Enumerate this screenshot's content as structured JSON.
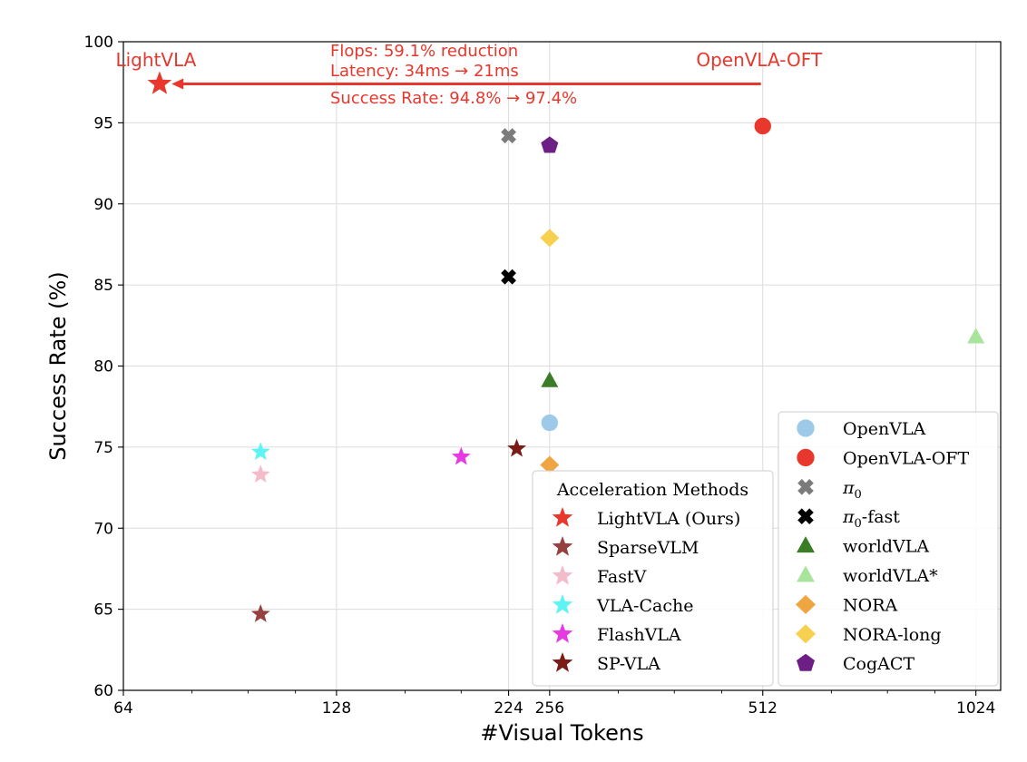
{
  "chart_data": {
    "type": "scatter",
    "xlabel": "#Visual Tokens",
    "ylabel": "Success Rate (%)",
    "xscale": "log2",
    "xlim": [
      64,
      1110
    ],
    "ylim": [
      60,
      100
    ],
    "xticks": [
      64,
      128,
      224,
      256,
      512,
      1024
    ],
    "yticks": [
      60,
      65,
      70,
      75,
      80,
      85,
      90,
      95,
      100
    ],
    "grid": true,
    "series": [
      {
        "name": "LightVLA (Ours)",
        "group": "acceleration",
        "marker": "star",
        "color": "#e8372c",
        "x": 72,
        "y": 97.4,
        "size": "large"
      },
      {
        "name": "SparseVLM",
        "group": "acceleration",
        "marker": "star",
        "color": "#96403f",
        "x": 100,
        "y": 64.7
      },
      {
        "name": "FastV",
        "group": "acceleration",
        "marker": "star",
        "color": "#f4bccb",
        "x": 100,
        "y": 73.3
      },
      {
        "name": "VLA-Cache",
        "group": "acceleration",
        "marker": "star",
        "color": "#5ff4f4",
        "x": 100,
        "y": 74.7
      },
      {
        "name": "FlashVLA",
        "group": "acceleration",
        "marker": "star",
        "color": "#e63ae3",
        "x": 192,
        "y": 74.4
      },
      {
        "name": "SP-VLA",
        "group": "acceleration",
        "marker": "star",
        "color": "#7a1b18",
        "x": 230,
        "y": 74.9
      },
      {
        "name": "OpenVLA",
        "group": "baseline",
        "marker": "circle",
        "color": "#9dcae9",
        "x": 256,
        "y": 76.5
      },
      {
        "name": "OpenVLA-OFT",
        "group": "baseline",
        "marker": "circle",
        "color": "#e8372c",
        "x": 512,
        "y": 94.8
      },
      {
        "name": "π0",
        "group": "baseline",
        "marker": "x",
        "color": "#7b7b7b",
        "x": 224,
        "y": 94.2
      },
      {
        "name": "π0-fast",
        "group": "baseline",
        "marker": "x",
        "color": "#000000",
        "x": 224,
        "y": 85.5
      },
      {
        "name": "worldVLA",
        "group": "baseline",
        "marker": "triangle",
        "color": "#3a7d26",
        "x": 256,
        "y": 79.1
      },
      {
        "name": "worldVLA*",
        "group": "baseline",
        "marker": "triangle",
        "color": "#a8e49b",
        "x": 1024,
        "y": 81.8
      },
      {
        "name": "NORA",
        "group": "baseline",
        "marker": "diamond",
        "color": "#f0a543",
        "x": 256,
        "y": 73.9
      },
      {
        "name": "NORA-long",
        "group": "baseline",
        "marker": "diamond",
        "color": "#f7d04f",
        "x": 256,
        "y": 87.9
      },
      {
        "name": "CogACT",
        "group": "baseline",
        "marker": "pentagon",
        "color": "#6d1f86",
        "x": 256,
        "y": 93.6
      }
    ],
    "legend_acceleration": {
      "title": "Acceleration Methods",
      "placement": "lower-center",
      "entries": [
        "LightVLA (Ours)",
        "SparseVLM",
        "FastV",
        "VLA-Cache",
        "FlashVLA",
        "SP-VLA"
      ]
    },
    "legend_baselines": {
      "placement": "lower-right",
      "entries": [
        {
          "series": "OpenVLA",
          "label": "OpenVLA"
        },
        {
          "series": "OpenVLA-OFT",
          "label": "OpenVLA-OFT"
        },
        {
          "series": "π0",
          "label": "π",
          "sub": "0",
          "suffix": ""
        },
        {
          "series": "π0-fast",
          "label": "π",
          "sub": "0",
          "suffix": "-fast"
        },
        {
          "series": "worldVLA",
          "label": "worldVLA"
        },
        {
          "series": "worldVLA*",
          "label": "worldVLA*"
        },
        {
          "series": "NORA",
          "label": "NORA"
        },
        {
          "series": "NORA-long",
          "label": "NORA-long"
        },
        {
          "series": "CogACT",
          "label": "CogACT"
        }
      ]
    },
    "annotations": {
      "color": "#e8372c",
      "left_label": "LightVLA",
      "right_label": "OpenVLA-OFT",
      "arrow": {
        "from": {
          "x": 512,
          "y": 97.4
        },
        "to": {
          "x": 74,
          "y": 97.4
        }
      },
      "lines": [
        "Flops: 59.1% reduction",
        "Latency: 34ms → 21ms",
        "Success Rate: 94.8% → 97.4%"
      ]
    }
  }
}
